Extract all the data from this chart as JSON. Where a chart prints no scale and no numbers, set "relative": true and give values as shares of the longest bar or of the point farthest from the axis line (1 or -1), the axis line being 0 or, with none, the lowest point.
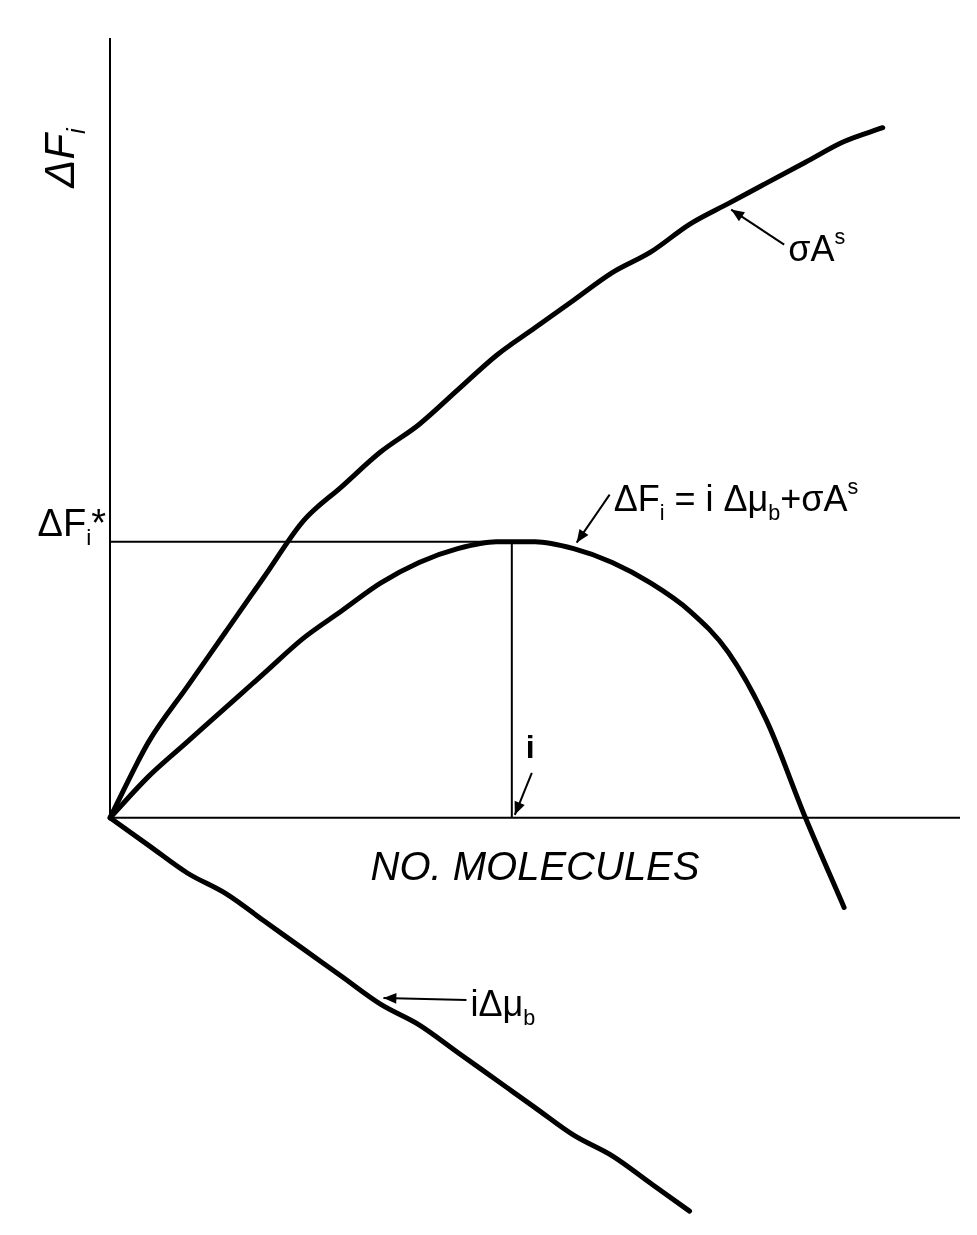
{
  "chart_data": {
    "type": "line",
    "relative": true,
    "ylabel": "ΔF$_{i}$",
    "xlabel": "NO. MOLECULES",
    "marker": "none",
    "line_style": "solid",
    "legend": "right",
    "annotations": [
      "i"
    ],
    "categories": [
      null,
      null,
      null,
      null,
      null,
      null,
      null,
      null,
      null,
      null,
      null,
      null,
      null,
      null,
      null,
      null,
      null,
      null,
      null,
      null,
      null,
      null,
      null
    ],
    "series": [
      {
        "name": "σA$^{s}$",
        "color": "#000000",
        "values": [
          0,
          0.11,
          0.19,
          0.27,
          0.35,
          0.43,
          0.48,
          0.53,
          0.57,
          0.62,
          0.67,
          0.71,
          0.75,
          0.79,
          0.82,
          0.86,
          0.89,
          0.92,
          0.95,
          0.98,
          1,
          null,
          null
        ]
      },
      {
        "name": "ΔF$_{i}$ = i Δμ$_{b}$+σA$^{s}$",
        "color": "#000000",
        "values": [
          0,
          0.06,
          0.11,
          0.16,
          0.21,
          0.26,
          0.3,
          0.34,
          0.37,
          0.39,
          0.4,
          0.4,
          0.39,
          0.37,
          0.34,
          0.3,
          0.24,
          0.14,
          0,
          -0.13,
          null,
          null,
          null
        ]
      },
      {
        "name": "iΔμ$_{b}$",
        "color": "#000000",
        "values": [
          0,
          -0.04,
          -0.08,
          -0.11,
          -0.15,
          -0.19,
          -0.23,
          -0.27,
          -0.3,
          -0.34,
          -0.38,
          -0.42,
          -0.46,
          -0.49,
          -0.53,
          -0.57,
          null,
          null,
          null,
          null,
          null,
          null,
          null
        ]
      }
    ],
    "ref_lines": [
      {
        "axis": "y",
        "value": 0.4,
        "label": "ΔF$_{i}$*"
      }
    ]
  }
}
